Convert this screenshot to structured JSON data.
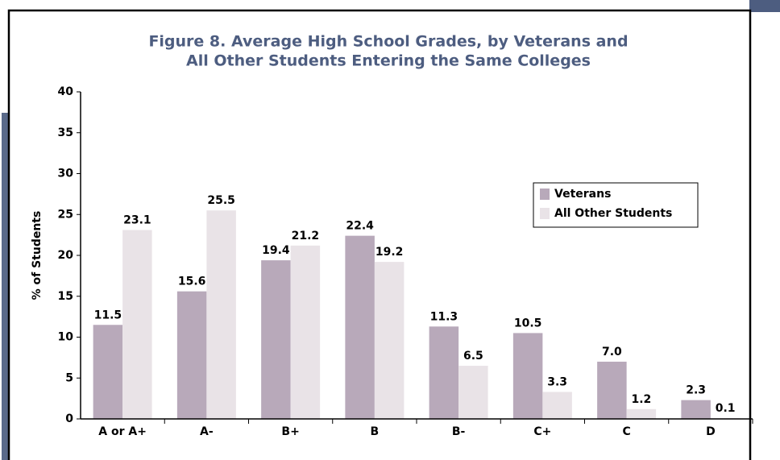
{
  "chart_data": {
    "type": "bar",
    "title": [
      "Figure 8. Average High School Grades, by Veterans and",
      "All Other Students Entering the Same Colleges"
    ],
    "ylabel": "% of Students",
    "categories": [
      "A or A+",
      "A-",
      "B+",
      "B",
      "B-",
      "C+",
      "C",
      "D"
    ],
    "series": [
      {
        "name": "Veterans",
        "color": "#b8a9ba",
        "values": [
          11.5,
          15.6,
          19.4,
          22.4,
          11.3,
          10.5,
          7.0,
          2.3
        ],
        "value_labels": [
          "11.5",
          "15.6",
          "19.4",
          "22.4",
          "11.3",
          "10.5",
          "7.0",
          "2.3"
        ]
      },
      {
        "name": "All Other Students",
        "color": "#e9e3e7",
        "values": [
          23.1,
          25.5,
          21.2,
          19.2,
          6.5,
          3.3,
          1.2,
          0.1
        ],
        "value_labels": [
          "23.1",
          "25.5",
          "21.2",
          "19.2",
          "6.5",
          "3.3",
          "1.2",
          "0.1"
        ]
      }
    ],
    "ylim": [
      0,
      40
    ],
    "yticks": [
      0,
      5,
      10,
      15,
      20,
      25,
      30,
      35,
      40
    ],
    "grid": false,
    "legend": "upper right"
  }
}
